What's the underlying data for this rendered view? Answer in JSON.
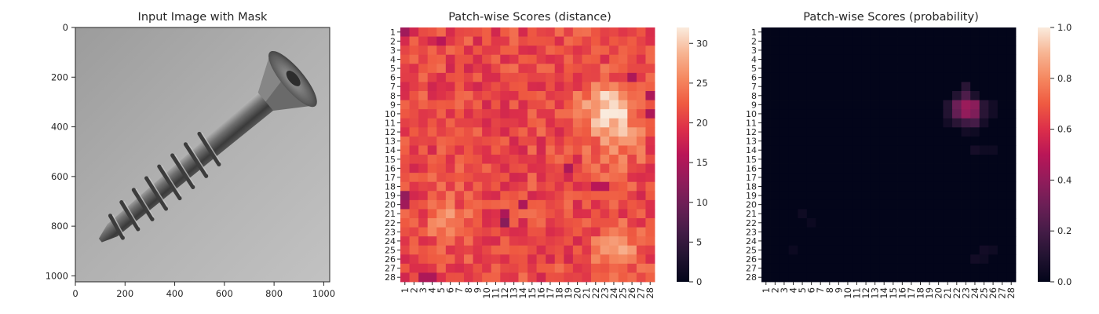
{
  "chart_data": [
    {
      "type": "image",
      "title": "Input Image with Mask",
      "xlim": [
        0,
        1024
      ],
      "ylim": [
        1024,
        0
      ],
      "x_ticks": [
        "0",
        "200",
        "400",
        "600",
        "800",
        "1000"
      ],
      "y_ticks": [
        "0",
        "200",
        "400",
        "600",
        "800",
        "1000"
      ],
      "x_tick_values": [
        0,
        200,
        400,
        600,
        800,
        1000
      ],
      "y_tick_values": [
        0,
        200,
        400,
        600,
        800,
        1000
      ]
    },
    {
      "type": "heatmap",
      "title": "Patch-wise Scores (distance)",
      "rows": [
        "1",
        "2",
        "3",
        "4",
        "5",
        "6",
        "7",
        "8",
        "9",
        "10",
        "11",
        "12",
        "13",
        "14",
        "15",
        "16",
        "17",
        "18",
        "19",
        "20",
        "21",
        "22",
        "23",
        "24",
        "25",
        "26",
        "27",
        "28"
      ],
      "cols": [
        "1",
        "2",
        "3",
        "4",
        "5",
        "6",
        "7",
        "8",
        "9",
        "10",
        "11",
        "12",
        "13",
        "14",
        "15",
        "16",
        "17",
        "18",
        "19",
        "20",
        "21",
        "22",
        "23",
        "24",
        "25",
        "26",
        "27",
        "28"
      ],
      "vmin": 0,
      "vmax": 32,
      "colorbar_ticks": [
        "0",
        "5",
        "10",
        "15",
        "20",
        "25",
        "30"
      ],
      "colorbar_tick_values": [
        0,
        5,
        10,
        15,
        20,
        25,
        30
      ],
      "base_value": 21,
      "hotspots": [
        {
          "row": 9.5,
          "col": 23.5,
          "peak": 31,
          "spread": 2.0
        },
        {
          "row": 13.5,
          "col": 24.5,
          "peak": 25,
          "spread": 2.0
        },
        {
          "row": 25,
          "col": 24.5,
          "peak": 26,
          "spread": 1.8
        },
        {
          "row": 21.5,
          "col": 5.5,
          "peak": 25,
          "spread": 1.6
        }
      ],
      "low_cells": [
        {
          "row": 1,
          "col": 1,
          "value": 14
        },
        {
          "row": 19,
          "col": 1,
          "value": 13
        },
        {
          "row": 20,
          "col": 1,
          "value": 14
        },
        {
          "row": 22,
          "col": 12,
          "value": 12
        },
        {
          "row": 21,
          "col": 12,
          "value": 15
        },
        {
          "row": 28,
          "col": 3,
          "value": 15
        },
        {
          "row": 28,
          "col": 4,
          "value": 15
        },
        {
          "row": 2,
          "col": 5,
          "value": 16
        },
        {
          "row": 6,
          "col": 26,
          "value": 15
        },
        {
          "row": 8,
          "col": 28,
          "value": 15
        },
        {
          "row": 10,
          "col": 28,
          "value": 15
        },
        {
          "row": 16,
          "col": 19,
          "value": 15
        },
        {
          "row": 20,
          "col": 14,
          "value": 15
        },
        {
          "row": 18,
          "col": 22,
          "value": 16
        },
        {
          "row": 18,
          "col": 23,
          "value": 16
        }
      ]
    },
    {
      "type": "heatmap",
      "title": "Patch-wise Scores (probability)",
      "rows": [
        "1",
        "2",
        "3",
        "4",
        "5",
        "6",
        "7",
        "8",
        "9",
        "10",
        "11",
        "12",
        "13",
        "14",
        "15",
        "16",
        "17",
        "18",
        "19",
        "20",
        "21",
        "22",
        "23",
        "24",
        "25",
        "26",
        "27",
        "28"
      ],
      "cols": [
        "1",
        "2",
        "3",
        "4",
        "5",
        "6",
        "7",
        "8",
        "9",
        "10",
        "11",
        "12",
        "13",
        "14",
        "15",
        "16",
        "17",
        "18",
        "19",
        "20",
        "21",
        "22",
        "23",
        "24",
        "25",
        "26",
        "27",
        "28"
      ],
      "vmin": 0.0,
      "vmax": 1.0,
      "colorbar_ticks": [
        "0.0",
        "0.2",
        "0.4",
        "0.6",
        "0.8",
        "1.0"
      ],
      "colorbar_tick_values": [
        0.0,
        0.2,
        0.4,
        0.6,
        0.8,
        1.0
      ],
      "base_value": 0.0,
      "nonzero_cells": [
        {
          "row": 7,
          "col": 23,
          "value": 0.12
        },
        {
          "row": 8,
          "col": 23,
          "value": 0.22
        },
        {
          "row": 8,
          "col": 22,
          "value": 0.1
        },
        {
          "row": 8,
          "col": 24,
          "value": 0.08
        },
        {
          "row": 9,
          "col": 21,
          "value": 0.1
        },
        {
          "row": 9,
          "col": 22,
          "value": 0.3
        },
        {
          "row": 9,
          "col": 23,
          "value": 0.42
        },
        {
          "row": 9,
          "col": 24,
          "value": 0.38
        },
        {
          "row": 9,
          "col": 25,
          "value": 0.12
        },
        {
          "row": 9,
          "col": 26,
          "value": 0.05
        },
        {
          "row": 10,
          "col": 21,
          "value": 0.1
        },
        {
          "row": 10,
          "col": 22,
          "value": 0.28
        },
        {
          "row": 10,
          "col": 23,
          "value": 0.4
        },
        {
          "row": 10,
          "col": 24,
          "value": 0.35
        },
        {
          "row": 10,
          "col": 25,
          "value": 0.12
        },
        {
          "row": 10,
          "col": 26,
          "value": 0.05
        },
        {
          "row": 11,
          "col": 21,
          "value": 0.05
        },
        {
          "row": 11,
          "col": 22,
          "value": 0.12
        },
        {
          "row": 11,
          "col": 23,
          "value": 0.18
        },
        {
          "row": 11,
          "col": 24,
          "value": 0.2
        },
        {
          "row": 11,
          "col": 25,
          "value": 0.06
        },
        {
          "row": 12,
          "col": 23,
          "value": 0.05
        },
        {
          "row": 12,
          "col": 24,
          "value": 0.04
        },
        {
          "row": 14,
          "col": 24,
          "value": 0.06
        },
        {
          "row": 14,
          "col": 25,
          "value": 0.04
        },
        {
          "row": 14,
          "col": 26,
          "value": 0.04
        },
        {
          "row": 21,
          "col": 5,
          "value": 0.04
        },
        {
          "row": 22,
          "col": 6,
          "value": 0.03
        },
        {
          "row": 25,
          "col": 4,
          "value": 0.03
        },
        {
          "row": 25,
          "col": 25,
          "value": 0.05
        },
        {
          "row": 25,
          "col": 26,
          "value": 0.04
        },
        {
          "row": 26,
          "col": 24,
          "value": 0.05
        },
        {
          "row": 26,
          "col": 25,
          "value": 0.04
        }
      ]
    }
  ]
}
